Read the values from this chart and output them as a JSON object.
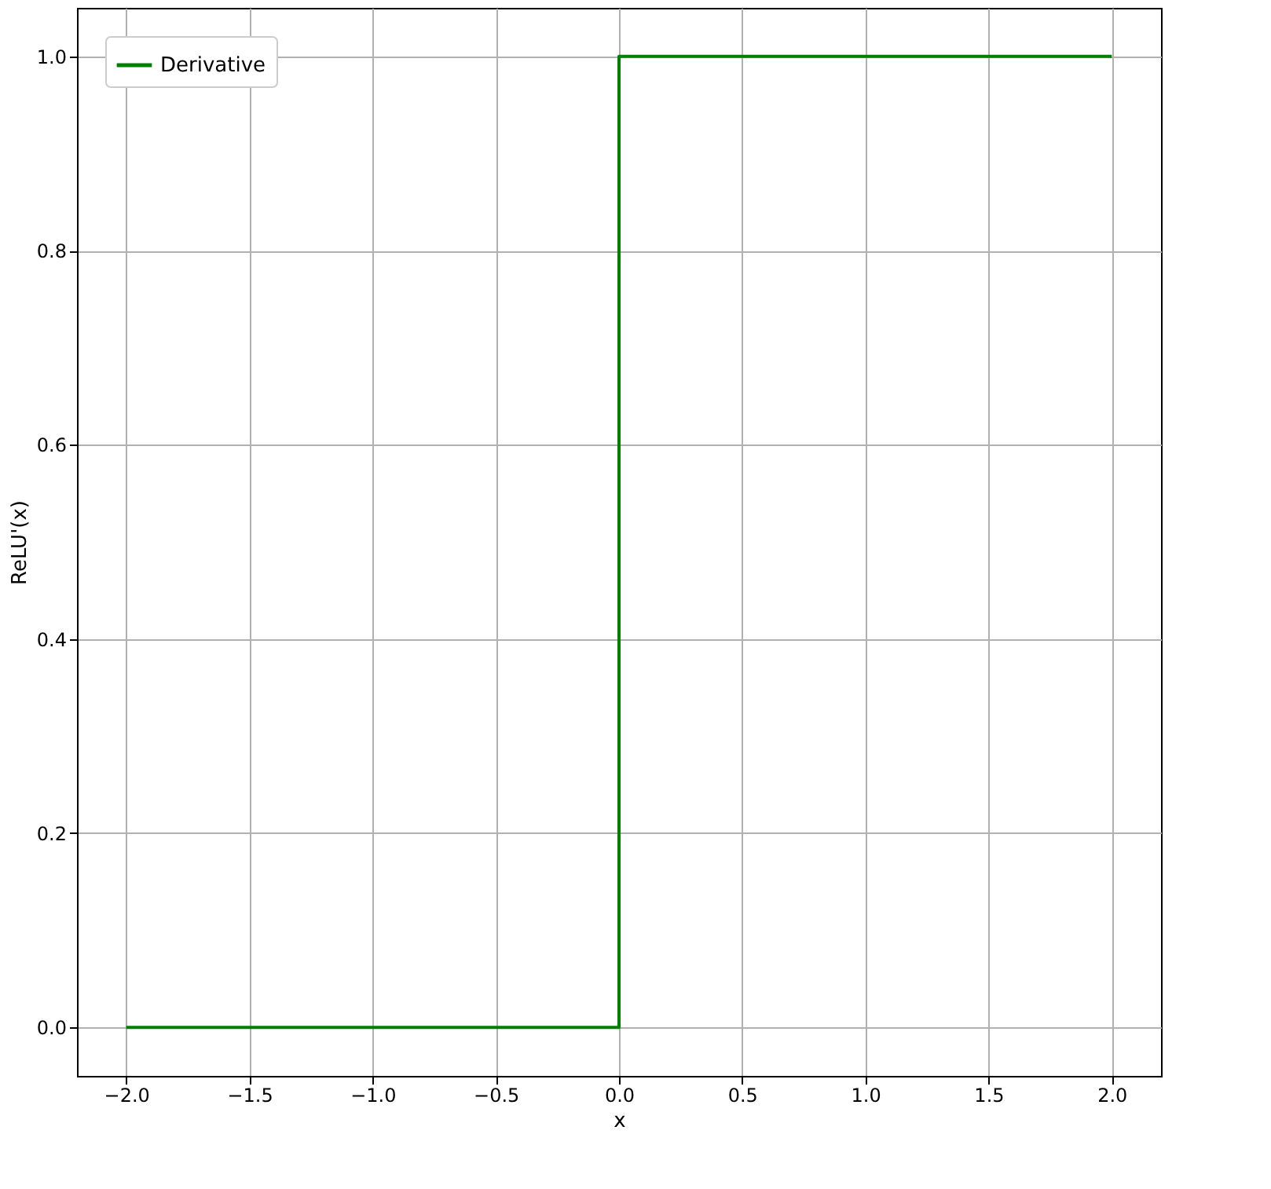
{
  "chart_data": {
    "type": "line",
    "xlabel": "x",
    "ylabel": "ReLU'(x)",
    "series": [
      {
        "name": "Derivative",
        "color": "#008000",
        "x": [
          -2,
          0,
          0,
          2
        ],
        "values": [
          0,
          0,
          1,
          1
        ]
      }
    ],
    "xlim": [
      -2.2,
      2.2
    ],
    "ylim": [
      -0.05,
      1.05
    ],
    "xticks": [
      {
        "value": -2,
        "label": "−2.0"
      },
      {
        "value": -1.5,
        "label": "−1.5"
      },
      {
        "value": -1,
        "label": "−1.0"
      },
      {
        "value": -0.5,
        "label": "−0.5"
      },
      {
        "value": 0,
        "label": "0.0"
      },
      {
        "value": 0.5,
        "label": "0.5"
      },
      {
        "value": 1,
        "label": "1.0"
      },
      {
        "value": 1.5,
        "label": "1.5"
      },
      {
        "value": 2,
        "label": "2.0"
      }
    ],
    "yticks": [
      {
        "value": 0,
        "label": "0.0"
      },
      {
        "value": 0.2,
        "label": "0.2"
      },
      {
        "value": 0.4,
        "label": "0.4"
      },
      {
        "value": 0.6,
        "label": "0.6"
      },
      {
        "value": 0.8,
        "label": "0.8"
      },
      {
        "value": 1,
        "label": "1.0"
      }
    ],
    "grid": true,
    "legend": "top left",
    "line_style": "solid",
    "marker": "none"
  }
}
